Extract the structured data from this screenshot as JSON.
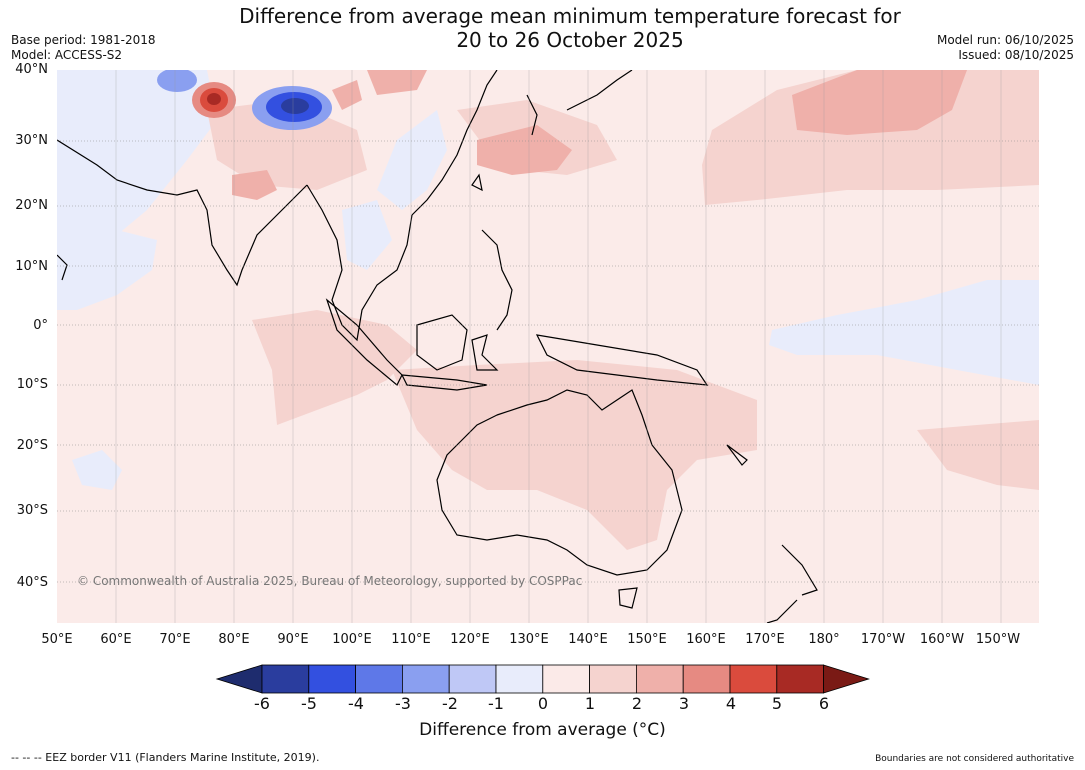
{
  "title": {
    "line1": "Difference from average mean minimum temperature forecast for",
    "line2": "20 to 26 October 2025"
  },
  "meta_left": {
    "base_period": "Base period: 1981-2018",
    "model": "Model: ACCESS-S2"
  },
  "meta_right": {
    "model_run": "Model run: 06/10/2025",
    "issued": "Issued: 08/10/2025"
  },
  "lat_labels": [
    "40°N",
    "30°N",
    "20°N",
    "10°N",
    "0°",
    "10°S",
    "20°S",
    "30°S",
    "40°S"
  ],
  "lon_labels": [
    "50°E",
    "60°E",
    "70°E",
    "80°E",
    "90°E",
    "100°E",
    "110°E",
    "120°E",
    "130°E",
    "140°E",
    "150°E",
    "160°E",
    "170°E",
    "180°",
    "170°W",
    "160°W",
    "150°W"
  ],
  "copyright": "© Commonwealth of Australia 2025, Bureau of Meteorology, supported by COSPPac",
  "colorbar": {
    "ticks": [
      "-6",
      "-5",
      "-4",
      "-3",
      "-2",
      "-1",
      "0",
      "1",
      "2",
      "3",
      "4",
      "5",
      "6"
    ],
    "colors": [
      "#2a3d9e",
      "#3350e0",
      "#5e78e8",
      "#8a9ff0",
      "#bfc8f6",
      "#e8ecfb",
      "#fbeae8",
      "#f5d3cf",
      "#efb0aa",
      "#e68a82",
      "#da4b3d",
      "#a82a24"
    ],
    "low_extend_color": "#1e2c6e",
    "high_extend_color": "#7a1a15",
    "label": "Difference from average (°C)"
  },
  "footer_left": "--  --  -- EEZ border V11 (Flanders Marine Institute, 2019).",
  "footer_right": "Boundaries are not considered authoritative"
}
